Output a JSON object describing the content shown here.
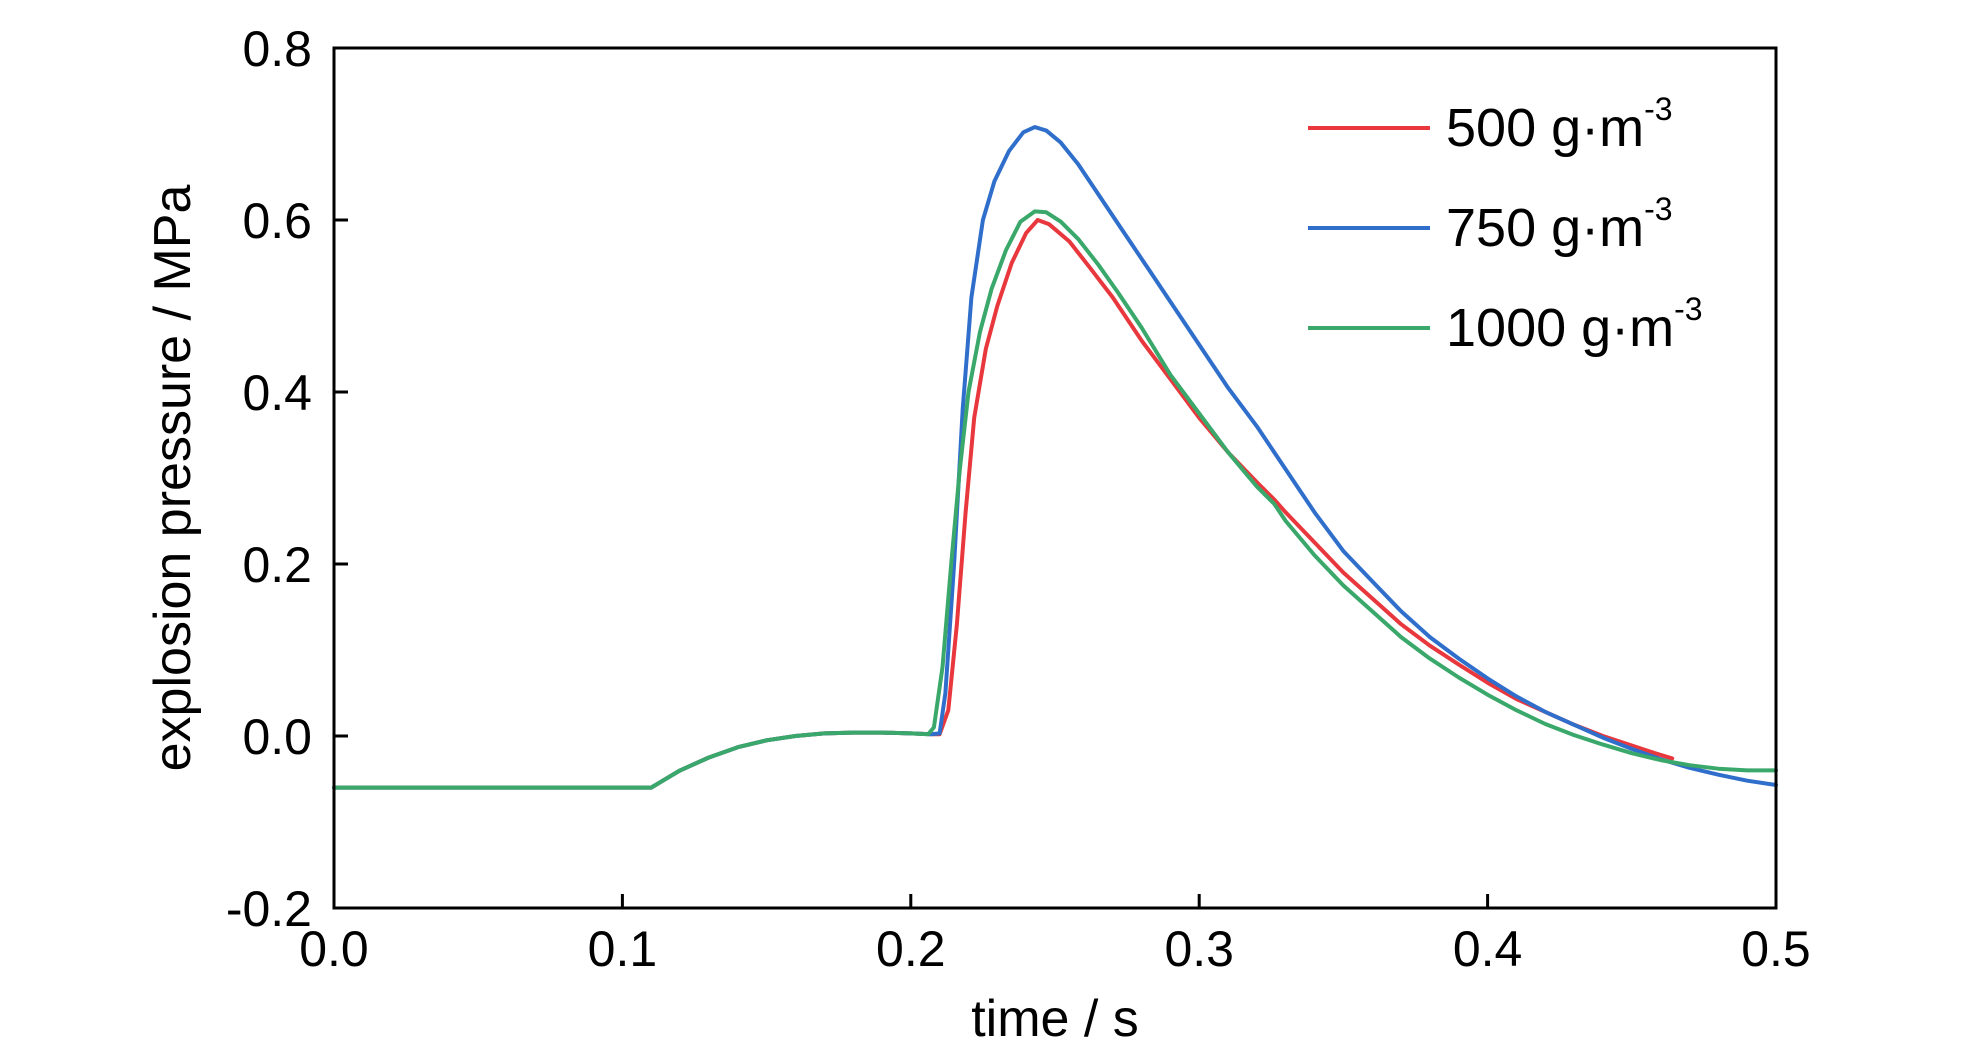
{
  "chart_data": {
    "type": "line",
    "xlabel": "time / s",
    "ylabel": "explosion pressure / MPa",
    "xlim": [
      0.0,
      0.5
    ],
    "ylim": [
      -0.2,
      0.8
    ],
    "x_ticks": [
      0.0,
      0.1,
      0.2,
      0.3,
      0.4,
      0.5
    ],
    "x_tick_labels": [
      "0.0",
      "0.1",
      "0.2",
      "0.3",
      "0.4",
      "0.5"
    ],
    "y_ticks": [
      -0.2,
      0.0,
      0.2,
      0.4,
      0.6,
      0.8
    ],
    "y_tick_labels": [
      "-0.2",
      "0.0",
      "0.2",
      "0.4",
      "0.6",
      "0.8"
    ],
    "grid": false,
    "legend_position": "top-right",
    "series": [
      {
        "name": "500 g·m-3",
        "label_base": "500 g·m",
        "label_sup": "-3",
        "color": "#e8383d",
        "points": [
          [
            0.0,
            -0.06
          ],
          [
            0.11,
            -0.06
          ],
          [
            0.114,
            -0.052
          ],
          [
            0.12,
            -0.04
          ],
          [
            0.13,
            -0.025
          ],
          [
            0.14,
            -0.013
          ],
          [
            0.15,
            -0.005
          ],
          [
            0.16,
            0.0
          ],
          [
            0.17,
            0.003
          ],
          [
            0.18,
            0.004
          ],
          [
            0.19,
            0.004
          ],
          [
            0.2,
            0.003
          ],
          [
            0.207,
            0.002
          ],
          [
            0.21,
            0.002
          ],
          [
            0.213,
            0.03
          ],
          [
            0.216,
            0.13
          ],
          [
            0.219,
            0.26
          ],
          [
            0.222,
            0.37
          ],
          [
            0.226,
            0.45
          ],
          [
            0.23,
            0.5
          ],
          [
            0.235,
            0.55
          ],
          [
            0.24,
            0.585
          ],
          [
            0.244,
            0.6
          ],
          [
            0.248,
            0.595
          ],
          [
            0.255,
            0.575
          ],
          [
            0.262,
            0.545
          ],
          [
            0.27,
            0.51
          ],
          [
            0.28,
            0.46
          ],
          [
            0.29,
            0.415
          ],
          [
            0.3,
            0.37
          ],
          [
            0.31,
            0.33
          ],
          [
            0.32,
            0.295
          ],
          [
            0.326,
            0.275
          ],
          [
            0.33,
            0.26
          ],
          [
            0.34,
            0.225
          ],
          [
            0.35,
            0.19
          ],
          [
            0.36,
            0.16
          ],
          [
            0.37,
            0.13
          ],
          [
            0.38,
            0.105
          ],
          [
            0.39,
            0.083
          ],
          [
            0.4,
            0.062
          ],
          [
            0.41,
            0.043
          ],
          [
            0.42,
            0.028
          ],
          [
            0.43,
            0.013
          ],
          [
            0.44,
            0.0
          ],
          [
            0.45,
            -0.011
          ],
          [
            0.458,
            -0.02
          ],
          [
            0.464,
            -0.026
          ]
        ]
      },
      {
        "name": "750 g·m-3",
        "label_base": "750 g·m",
        "label_sup": "-3",
        "color": "#2f6fcb",
        "points": [
          [
            0.0,
            -0.06
          ],
          [
            0.11,
            -0.06
          ],
          [
            0.114,
            -0.052
          ],
          [
            0.12,
            -0.04
          ],
          [
            0.13,
            -0.025
          ],
          [
            0.14,
            -0.013
          ],
          [
            0.15,
            -0.005
          ],
          [
            0.16,
            0.0
          ],
          [
            0.17,
            0.003
          ],
          [
            0.18,
            0.004
          ],
          [
            0.19,
            0.004
          ],
          [
            0.2,
            0.003
          ],
          [
            0.207,
            0.002
          ],
          [
            0.21,
            0.003
          ],
          [
            0.212,
            0.05
          ],
          [
            0.215,
            0.2
          ],
          [
            0.218,
            0.38
          ],
          [
            0.221,
            0.51
          ],
          [
            0.225,
            0.6
          ],
          [
            0.229,
            0.645
          ],
          [
            0.234,
            0.68
          ],
          [
            0.239,
            0.702
          ],
          [
            0.243,
            0.708
          ],
          [
            0.247,
            0.704
          ],
          [
            0.252,
            0.69
          ],
          [
            0.258,
            0.665
          ],
          [
            0.265,
            0.63
          ],
          [
            0.273,
            0.59
          ],
          [
            0.282,
            0.545
          ],
          [
            0.29,
            0.505
          ],
          [
            0.3,
            0.455
          ],
          [
            0.31,
            0.405
          ],
          [
            0.32,
            0.36
          ],
          [
            0.326,
            0.33
          ],
          [
            0.33,
            0.31
          ],
          [
            0.34,
            0.26
          ],
          [
            0.35,
            0.215
          ],
          [
            0.36,
            0.18
          ],
          [
            0.37,
            0.145
          ],
          [
            0.38,
            0.115
          ],
          [
            0.39,
            0.09
          ],
          [
            0.4,
            0.067
          ],
          [
            0.41,
            0.046
          ],
          [
            0.42,
            0.028
          ],
          [
            0.43,
            0.013
          ],
          [
            0.44,
            -0.002
          ],
          [
            0.45,
            -0.015
          ],
          [
            0.46,
            -0.027
          ],
          [
            0.47,
            -0.037
          ],
          [
            0.48,
            -0.045
          ],
          [
            0.49,
            -0.052
          ],
          [
            0.5,
            -0.057
          ]
        ]
      },
      {
        "name": "1000 g·m-3",
        "label_base": "1000 g·m",
        "label_sup": "-3",
        "color": "#3aa86a",
        "points": [
          [
            0.0,
            -0.06
          ],
          [
            0.11,
            -0.06
          ],
          [
            0.114,
            -0.052
          ],
          [
            0.12,
            -0.04
          ],
          [
            0.13,
            -0.025
          ],
          [
            0.14,
            -0.013
          ],
          [
            0.15,
            -0.005
          ],
          [
            0.16,
            0.0
          ],
          [
            0.17,
            0.003
          ],
          [
            0.18,
            0.004
          ],
          [
            0.19,
            0.004
          ],
          [
            0.2,
            0.003
          ],
          [
            0.206,
            0.002
          ],
          [
            0.208,
            0.01
          ],
          [
            0.211,
            0.08
          ],
          [
            0.214,
            0.2
          ],
          [
            0.217,
            0.31
          ],
          [
            0.22,
            0.4
          ],
          [
            0.224,
            0.47
          ],
          [
            0.228,
            0.52
          ],
          [
            0.233,
            0.565
          ],
          [
            0.238,
            0.598
          ],
          [
            0.243,
            0.61
          ],
          [
            0.247,
            0.609
          ],
          [
            0.252,
            0.598
          ],
          [
            0.258,
            0.578
          ],
          [
            0.265,
            0.548
          ],
          [
            0.272,
            0.515
          ],
          [
            0.28,
            0.475
          ],
          [
            0.29,
            0.42
          ],
          [
            0.3,
            0.375
          ],
          [
            0.31,
            0.33
          ],
          [
            0.32,
            0.29
          ],
          [
            0.326,
            0.27
          ],
          [
            0.33,
            0.25
          ],
          [
            0.34,
            0.21
          ],
          [
            0.35,
            0.175
          ],
          [
            0.36,
            0.145
          ],
          [
            0.37,
            0.115
          ],
          [
            0.38,
            0.09
          ],
          [
            0.39,
            0.068
          ],
          [
            0.4,
            0.048
          ],
          [
            0.41,
            0.03
          ],
          [
            0.42,
            0.014
          ],
          [
            0.43,
            0.001
          ],
          [
            0.44,
            -0.01
          ],
          [
            0.45,
            -0.02
          ],
          [
            0.46,
            -0.028
          ],
          [
            0.47,
            -0.034
          ],
          [
            0.48,
            -0.038
          ],
          [
            0.49,
            -0.04
          ],
          [
            0.5,
            -0.04
          ]
        ]
      }
    ]
  }
}
